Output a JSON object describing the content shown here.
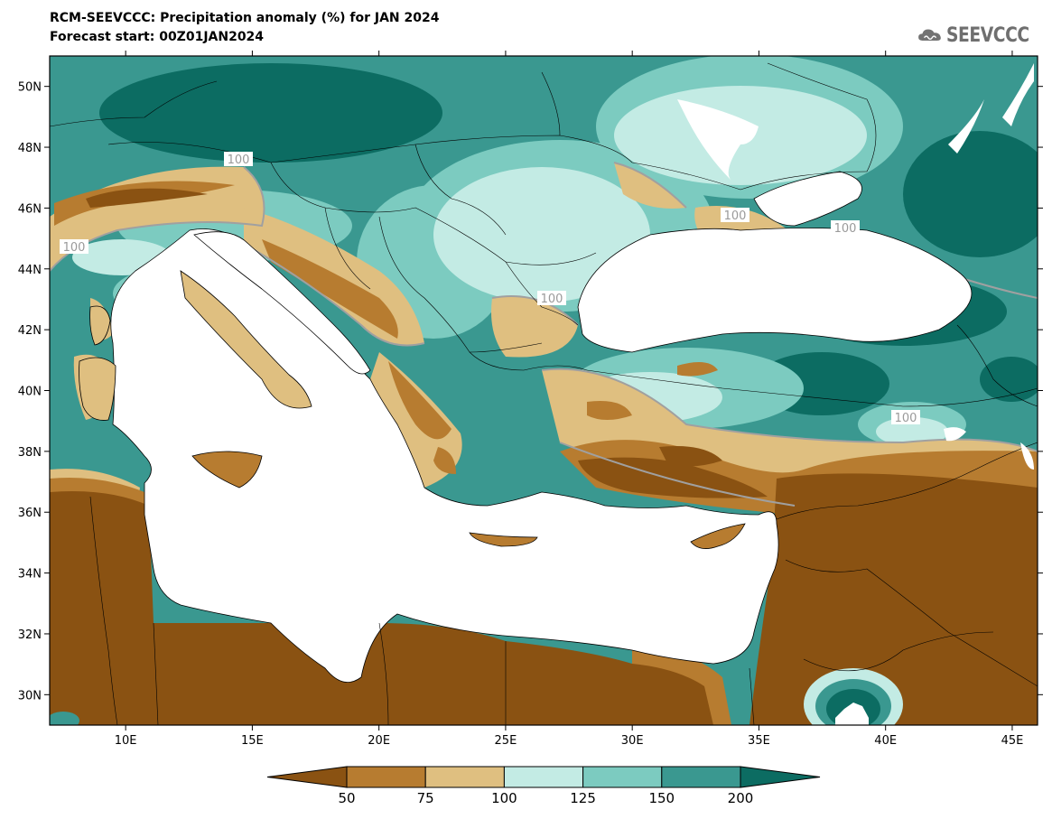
{
  "title": {
    "line1": "RCM-SEEVCCC: Precipitation anomaly (%) for JAN 2024",
    "line2": "Forecast start: 00Z01JAN2024"
  },
  "logo": {
    "text": "SEEVCCC",
    "icon": "cloud-logo-icon"
  },
  "chart_data": {
    "type": "heatmap",
    "variable": "Precipitation anomaly (%)",
    "lon_range": [
      7,
      46
    ],
    "lat_range": [
      29,
      51
    ],
    "x_ticks": [
      "10E",
      "15E",
      "20E",
      "25E",
      "30E",
      "35E",
      "40E",
      "45E"
    ],
    "x_tick_values": [
      10,
      15,
      20,
      25,
      30,
      35,
      40,
      45
    ],
    "y_ticks": [
      "50N",
      "48N",
      "46N",
      "44N",
      "42N",
      "40N",
      "38N",
      "36N",
      "34N",
      "32N",
      "30N"
    ],
    "y_tick_values": [
      50,
      48,
      46,
      44,
      42,
      40,
      38,
      36,
      34,
      32,
      30
    ],
    "contour_labels": [
      "100",
      "100",
      "100",
      "100",
      "100",
      "100"
    ],
    "colorbar": {
      "levels": [
        "50",
        "75",
        "100",
        "125",
        "150",
        "200"
      ],
      "level_values": [
        50,
        75,
        100,
        125,
        150,
        200
      ],
      "colors": [
        "#8a5212",
        "#b77c30",
        "#dfbf80",
        "#c3ebe4",
        "#7ccbc0",
        "#3a9890",
        "#0c6c62"
      ]
    }
  }
}
